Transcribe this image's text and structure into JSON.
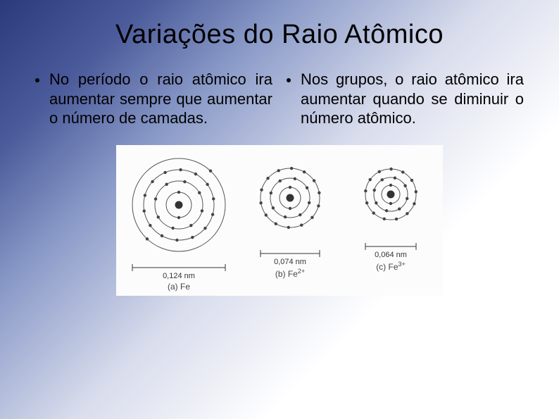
{
  "title": "Variações do Raio Atômico",
  "bullets": {
    "left": "No período o raio atômico ira aumentar sempre que aumentar o número de camadas.",
    "right": "Nos grupos, o raio atômico ira aumentar quando se diminuir o número atômico."
  },
  "diagram": {
    "background": "#fcfcfc",
    "shell_color": "#555555",
    "nucleus_color": "#333333",
    "electron_color": "#444444",
    "atoms": [
      {
        "id": "a",
        "label_prefix": "(a)",
        "label_element": "Fe",
        "label_charge": "",
        "scale_text": "0,124 nm",
        "canvas": 150,
        "shells": [
          18,
          34,
          50,
          66
        ],
        "electrons": [
          2,
          8,
          14,
          2
        ],
        "bar_half": 66
      },
      {
        "id": "b",
        "label_prefix": "(b)",
        "label_element": "Fe",
        "label_charge": "2+",
        "scale_text": "0,074 nm",
        "canvas": 130,
        "shells": [
          15,
          28,
          42
        ],
        "electrons": [
          2,
          8,
          14
        ],
        "bar_half": 42
      },
      {
        "id": "c",
        "label_prefix": "(c)",
        "label_element": "Fe",
        "label_charge": "3+",
        "scale_text": "0,064 nm",
        "canvas": 120,
        "shells": [
          13,
          24,
          36
        ],
        "electrons": [
          2,
          8,
          13
        ],
        "bar_half": 36
      }
    ]
  }
}
